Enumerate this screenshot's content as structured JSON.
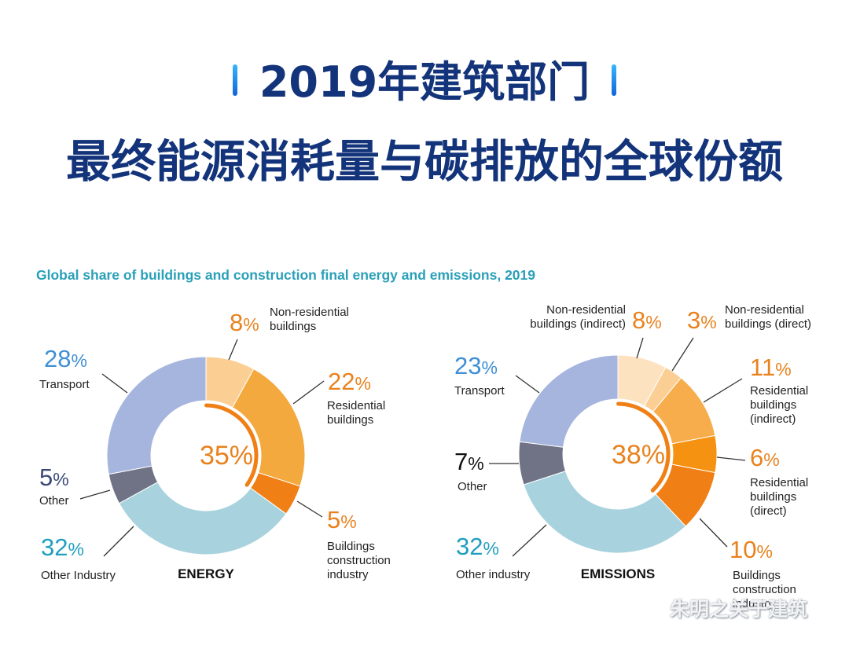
{
  "header": {
    "title_line1": "2019年建筑部门",
    "title_line2": "最终能源消耗量与碳排放的全球份额"
  },
  "subtitle": "Global share of buildings and construction final energy and emissions, 2019",
  "colors": {
    "title": "#13347a",
    "subtitle": "#2aa0b8",
    "orange_text": "#e8821e",
    "blue_text": "#3f8fd6",
    "teal_text": "#1f9fbf",
    "slate_text": "#3b4a78",
    "connector": "#333333"
  },
  "chart_data": [
    {
      "type": "pie",
      "center_label": "ENERGY",
      "center_value": "35%",
      "labels": [
        "Non-residential buildings",
        "Residential buildings",
        "Buildings construction industry",
        "Other Industry",
        "Other",
        "Transport"
      ],
      "values": [
        8,
        22,
        5,
        32,
        5,
        28
      ],
      "colors": [
        "#fbcf94",
        "#f4a93e",
        "#f07f15",
        "#a8d3de",
        "#6f7385",
        "#a6b5de"
      ],
      "annotations": [
        {
          "value": "8%",
          "name": "Non-residential\nbuildings"
        },
        {
          "value": "22%",
          "name": "Residential\nbuildings"
        },
        {
          "value": "5%",
          "name": "Buildings\nconstruction\nindustry"
        },
        {
          "value": "32%",
          "name": "Other Industry"
        },
        {
          "value": "5%",
          "name": "Other"
        },
        {
          "value": "28%",
          "name": "Transport"
        }
      ]
    },
    {
      "type": "pie",
      "center_label": "EMISSIONS",
      "center_value": "38%",
      "labels": [
        "Non-residential buildings (indirect)",
        "Non-residential buildings (direct)",
        "Residential buildings (indirect)",
        "Residential buildings (direct)",
        "Buildings construction industry",
        "Other industry",
        "Other",
        "Transport"
      ],
      "values": [
        8,
        3,
        11,
        6,
        10,
        32,
        7,
        23
      ],
      "colors": [
        "#fde2c0",
        "#fbcf94",
        "#f7ad4c",
        "#f59211",
        "#f07f15",
        "#a8d3de",
        "#6f7385",
        "#a6b5de"
      ],
      "annotations": [
        {
          "value": "8%",
          "name": "Non-residential\nbuildings (indirect)"
        },
        {
          "value": "3%",
          "name": "Non-residential\nbuildings (direct)"
        },
        {
          "value": "11%",
          "name": "Residential\nbuildings\n(indirect)"
        },
        {
          "value": "6%",
          "name": "Residential\nbuildings\n(direct)"
        },
        {
          "value": "10%",
          "name": "Buildings\nconstruction\nindustry"
        },
        {
          "value": "32%",
          "name": "Other industry"
        },
        {
          "value": "7%",
          "name": "Other"
        },
        {
          "value": "23%",
          "name": "Transport"
        }
      ]
    }
  ],
  "watermark": "朱明之关于建筑"
}
